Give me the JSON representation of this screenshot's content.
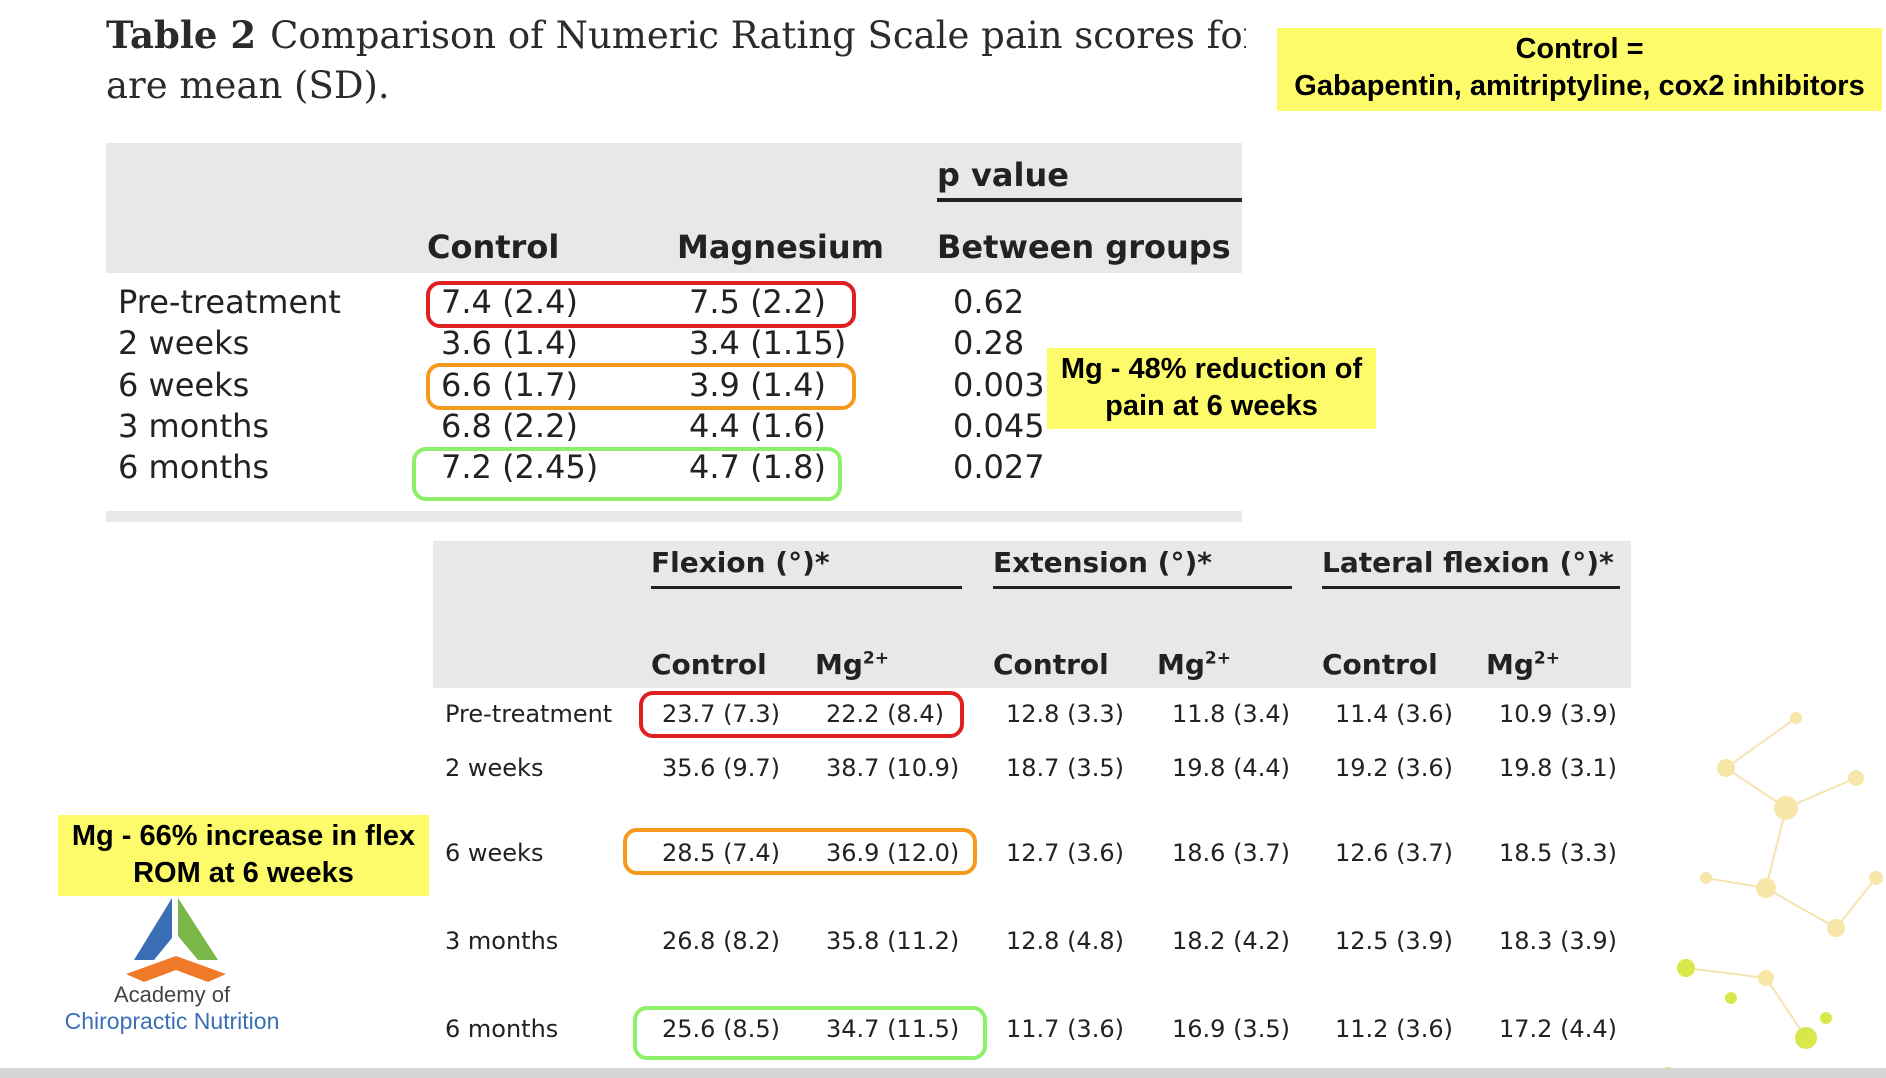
{
  "caption": {
    "label": "Table 2",
    "line1": "Comparison of Numeric Rating Scale pain scores for patie",
    "line2": "are mean (SD)."
  },
  "notes": {
    "control_def_1": "Control =",
    "control_def_2": "Gabapentin, amitriptyline, cox2 inhibitors",
    "pain_1": "Mg - 48% reduction of",
    "pain_2": "pain at 6 weeks",
    "flex_1": "Mg - 66% increase in flex",
    "flex_2": "ROM at 6 weeks"
  },
  "table1": {
    "pvalue_header": "p value",
    "columns": [
      "Control",
      "Magnesium",
      "Between groups"
    ],
    "rows": [
      {
        "label": "Pre-treatment",
        "control": "7.4 (2.4)",
        "magnesium": "7.5 (2.2)",
        "p": "0.62"
      },
      {
        "label": "2 weeks",
        "control": "3.6 (1.4)",
        "magnesium": "3.4 (1.15)",
        "p": "0.28"
      },
      {
        "label": "6 weeks",
        "control": "6.6 (1.7)",
        "magnesium": "3.9 (1.4)",
        "p": "0.003"
      },
      {
        "label": "3 months",
        "control": "6.8 (2.2)",
        "magnesium": "4.4 (1.6)",
        "p": "0.045"
      },
      {
        "label": "6 months",
        "control": "7.2 (2.45)",
        "magnesium": "4.7 (1.8)",
        "p": "0.027"
      }
    ]
  },
  "table2": {
    "groups": [
      "Flexion (°)*",
      "Extension (°)*",
      "Lateral flexion (°)*"
    ],
    "sub_control": "Control",
    "sub_mg": "Mg",
    "sub_mg_sup": "2+",
    "rows": [
      {
        "label": "Pre-treatment",
        "values": [
          "23.7 (7.3)",
          "22.2 (8.4)",
          "12.8 (3.3)",
          "11.8 (3.4)",
          "11.4 (3.6)",
          "10.9 (3.9)"
        ]
      },
      {
        "label": "2 weeks",
        "values": [
          "35.6 (9.7)",
          "38.7 (10.9)",
          "18.7 (3.5)",
          "19.8 (4.4)",
          "19.2 (3.6)",
          "19.8 (3.1)"
        ]
      },
      {
        "label": "6 weeks",
        "values": [
          "28.5 (7.4)",
          "36.9 (12.0)",
          "12.7 (3.6)",
          "18.6 (3.7)",
          "12.6 (3.7)",
          "18.5 (3.3)"
        ]
      },
      {
        "label": "3 months",
        "values": [
          "26.8 (8.2)",
          "35.8 (11.2)",
          "12.8 (4.8)",
          "18.2 (4.2)",
          "12.5 (3.9)",
          "18.3 (3.9)"
        ]
      },
      {
        "label": "6 months",
        "values": [
          "25.6 (8.5)",
          "34.7 (11.5)",
          "11.7 (3.6)",
          "16.9 (3.5)",
          "11.2 (3.6)",
          "17.2 (4.4)"
        ]
      }
    ]
  },
  "logo": {
    "line1": "Academy of",
    "line2": "Chiropractic Nutrition"
  },
  "colors": {
    "highlight_yellow": "#fefb6a",
    "box_red": "#e02020",
    "box_orange": "#f59a1c",
    "box_green": "#8ef06a",
    "logo_blue": "#3a6fb5",
    "logo_green": "#7ab648",
    "logo_orange": "#f07a2a"
  }
}
